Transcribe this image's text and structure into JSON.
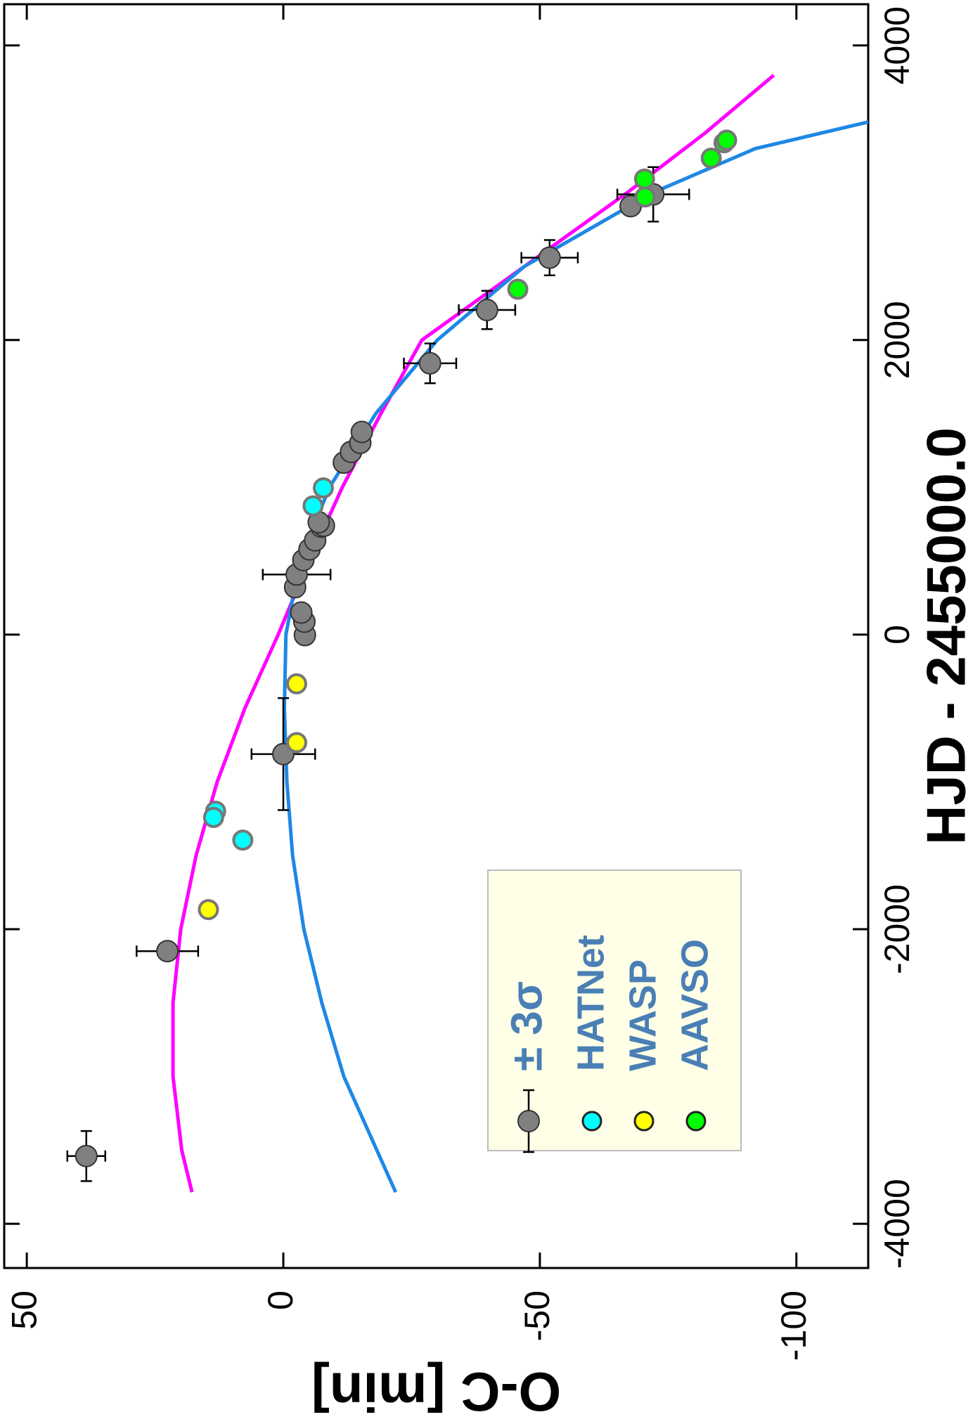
{
  "chart_data": {
    "type": "scatter",
    "x_label": "HJD - 2455000.0",
    "y_label": "O-C [min]",
    "xlim": [
      -4300,
      4280
    ],
    "ylim": [
      -114,
      54.4
    ],
    "xticks": [
      -4000,
      -2000,
      0,
      2000,
      4000
    ],
    "yticks": [
      50,
      0,
      -50,
      -100
    ],
    "series": [
      {
        "name": "± 3σ",
        "color": "#808080",
        "x": [
          -3540,
          -2149,
          -811,
          -3,
          88,
          150,
          322,
          408,
          506,
          579,
          640,
          733,
          739,
          763,
          1168,
          1241,
          1302,
          1376,
          1842,
          2204,
          2559,
          2909,
          2989
        ],
        "values": [
          38.4,
          22.6,
          0,
          -4.2,
          -4.1,
          -3.5,
          -2.3,
          -2.6,
          -3.9,
          -5.1,
          -6.2,
          -7.4,
          -7.9,
          -6.9,
          -11.8,
          -13.2,
          -15,
          -15.3,
          -28.6,
          -39.7,
          -51.9,
          -67.7,
          -72.1
        ],
        "errors": [
          3.7,
          6,
          6.2,
          null,
          null,
          null,
          null,
          6.6,
          null,
          null,
          null,
          null,
          null,
          null,
          null,
          null,
          null,
          null,
          5.1,
          5.5,
          5.5,
          null,
          7
        ],
        "x_errors": [
          170,
          null,
          380,
          null,
          null,
          null,
          null,
          null,
          null,
          null,
          null,
          null,
          null,
          null,
          null,
          null,
          null,
          null,
          135,
          130,
          120,
          null,
          185
        ]
      },
      {
        "name": "HATNet",
        "color": "#00ffff",
        "x": [
          -1395,
          -1199,
          -1241,
          874,
          996
        ],
        "values": [
          7.9,
          13.2,
          13.6,
          -5.8,
          -7.8
        ]
      },
      {
        "name": "WASP",
        "color": "#ffff00",
        "x": [
          -1867,
          -334,
          -733
        ],
        "values": [
          14.6,
          -2.6,
          -2.6
        ]
      },
      {
        "name": "AAVSO",
        "color": "#00ff00",
        "x": [
          2345,
          3093,
          2971,
          3235,
          3339,
          3357
        ],
        "values": [
          -45.7,
          -70.4,
          -70.5,
          -83.4,
          -85.9,
          -86.4
        ]
      }
    ],
    "curves": [
      {
        "color": "#ff00ff",
        "x": [
          -3785,
          -3500,
          -3000,
          -2500,
          -2000,
          -1500,
          -1000,
          -500,
          0,
          500,
          1000,
          1500,
          2000,
          2500,
          3000,
          3400,
          3798
        ],
        "values": [
          17.8,
          19.8,
          21.5,
          21.5,
          20,
          17,
          12.9,
          7.5,
          1,
          -5,
          -11.5,
          -19,
          -27,
          -47,
          -67,
          -82,
          -95.6
        ]
      },
      {
        "color": "#1e88e5",
        "x": [
          -3785,
          -3000,
          -2500,
          -2000,
          -1500,
          -1000,
          -500,
          0,
          500,
          1000,
          1500,
          2000,
          2500,
          3000,
          3300,
          3480
        ],
        "values": [
          -21.9,
          -11.8,
          -7.5,
          -4,
          -1.8,
          -0.7,
          -0.2,
          -0.5,
          -3.2,
          -9,
          -18,
          -30,
          -47,
          -72,
          -92,
          -114
        ]
      }
    ]
  }
}
